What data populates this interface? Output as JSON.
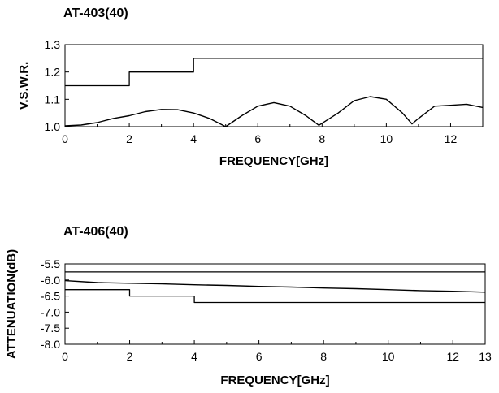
{
  "chart_data": [
    {
      "type": "line",
      "title": "AT-403(40)",
      "xlabel": "FREQUENCY[GHz]",
      "ylabel": "V.S.W.R.",
      "xlim": [
        0,
        13
      ],
      "ylim": [
        1.0,
        1.3
      ],
      "xticks": [
        0,
        2,
        4,
        6,
        8,
        10,
        12
      ],
      "xtick_labels": [
        "0",
        "2",
        "4",
        "6",
        "8",
        "10",
        "12"
      ],
      "yticks": [
        1.0,
        1.1,
        1.2,
        1.3
      ],
      "ytick_labels": [
        "1.0",
        "1.1",
        "1.2",
        "1.3"
      ],
      "series": [
        {
          "role": "limit",
          "style": "step",
          "x": [
            0,
            2,
            2,
            4,
            4,
            13
          ],
          "y": [
            1.15,
            1.15,
            1.2,
            1.2,
            1.25,
            1.25
          ]
        },
        {
          "role": "measured",
          "x": [
            0,
            0.5,
            1,
            1.5,
            2,
            2.5,
            3,
            3.5,
            4,
            4.5,
            5,
            5.5,
            6,
            6.5,
            7,
            7.5,
            7.9,
            8.5,
            9,
            9.5,
            10,
            10.5,
            10.8,
            11,
            11.5,
            12,
            12.5,
            13
          ],
          "y": [
            1.003,
            1.006,
            1.015,
            1.03,
            1.04,
            1.055,
            1.063,
            1.062,
            1.05,
            1.03,
            1.0,
            1.04,
            1.075,
            1.088,
            1.075,
            1.04,
            1.005,
            1.05,
            1.095,
            1.11,
            1.1,
            1.05,
            1.01,
            1.03,
            1.075,
            1.078,
            1.082,
            1.07
          ]
        }
      ]
    },
    {
      "type": "line",
      "title": "AT-406(40)",
      "xlabel": "FREQUENCY[GHz]",
      "ylabel": "ATTENUATION(dB)",
      "xlim": [
        0,
        13
      ],
      "ylim": [
        -8.0,
        -5.5
      ],
      "xticks": [
        0,
        2,
        4,
        6,
        8,
        10,
        12,
        13
      ],
      "xtick_labels": [
        "0",
        "2",
        "4",
        "6",
        "8",
        "10",
        "12",
        "13"
      ],
      "yticks": [
        -5.5,
        -6.0,
        -6.5,
        -7.0,
        -7.5,
        -8.0
      ],
      "ytick_labels": [
        "-5.5",
        "-6.0",
        "-6.5",
        "-7.0",
        "-7.5",
        "-8.0"
      ],
      "series": [
        {
          "role": "upper limit",
          "style": "step",
          "x": [
            0,
            13
          ],
          "y": [
            -5.75,
            -5.75
          ]
        },
        {
          "role": "measured",
          "x": [
            0,
            1,
            2,
            3,
            4,
            5,
            6,
            7,
            8,
            9,
            10,
            11,
            12,
            13
          ],
          "y": [
            -6.02,
            -6.08,
            -6.1,
            -6.12,
            -6.15,
            -6.17,
            -6.2,
            -6.22,
            -6.25,
            -6.27,
            -6.3,
            -6.33,
            -6.35,
            -6.38
          ]
        },
        {
          "role": "lower limit",
          "style": "step",
          "x": [
            0,
            2,
            2,
            4,
            4,
            13
          ],
          "y": [
            -6.3,
            -6.3,
            -6.5,
            -6.5,
            -6.7,
            -6.7
          ]
        }
      ]
    }
  ]
}
